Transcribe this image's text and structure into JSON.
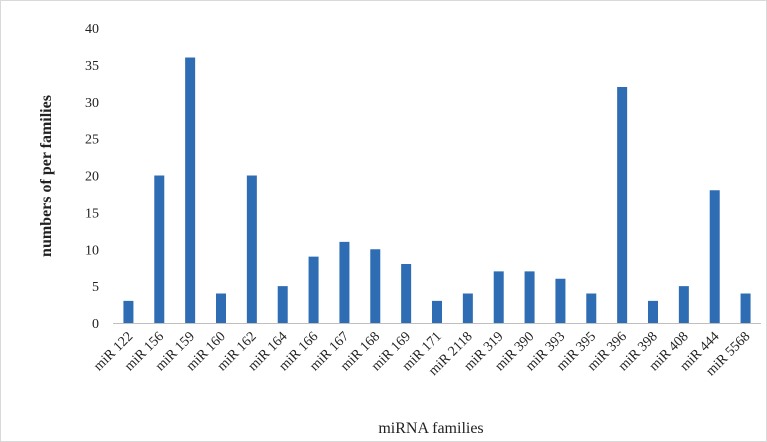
{
  "chart_data": {
    "type": "bar",
    "title": "",
    "xlabel": "miRNA families",
    "ylabel": "numbers of per families",
    "categories": [
      "miR 122",
      "miR 156",
      "miR 159",
      "miR 160",
      "miR 162",
      "miR 164",
      "miR 166",
      "miR 167",
      "miR 168",
      "miR 169",
      "miR 171",
      "miR 2118",
      "miR 319",
      "miR 390",
      "miR 393",
      "miR 395",
      "miR 396",
      "miR 398",
      "miR 408",
      "miR 444",
      "miR 5568"
    ],
    "values": [
      3,
      20,
      36,
      4,
      20,
      5,
      9,
      11,
      10,
      8,
      3,
      4,
      7,
      7,
      6,
      4,
      32,
      3,
      5,
      18,
      4
    ],
    "ylim": [
      0,
      40
    ],
    "yticks": [
      0,
      5,
      10,
      15,
      20,
      25,
      30,
      35,
      40
    ],
    "grid": false,
    "legend": "none",
    "bar_color": "#2e6db4"
  }
}
